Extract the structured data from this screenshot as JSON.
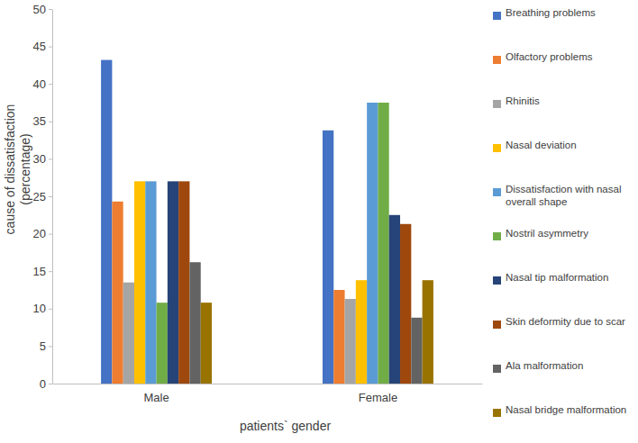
{
  "chart_data": {
    "type": "bar",
    "x_label": "patients` gender",
    "y_label": [
      "cause of dissatisfaction",
      "(percentage)"
    ],
    "categories": [
      "Male",
      "Female"
    ],
    "series": [
      {
        "name": "Breathing problems",
        "color": "#4472c4",
        "values": [
          43.2,
          33.8
        ]
      },
      {
        "name": "Olfactory problems",
        "color": "#ed7d31",
        "values": [
          24.3,
          12.5
        ]
      },
      {
        "name": "Rhinitis",
        "color": "#a5a5a5",
        "values": [
          13.5,
          11.3
        ]
      },
      {
        "name": "Nasal deviation",
        "color": "#ffc000",
        "values": [
          27.0,
          13.8
        ]
      },
      {
        "name": "Dissatisfaction with nasal overall shape",
        "color": "#5b9bd5",
        "values": [
          27.0,
          37.5
        ]
      },
      {
        "name": "Nostril asymmetry",
        "color": "#70ad47",
        "values": [
          10.8,
          37.5
        ]
      },
      {
        "name": "Nasal tip malformation",
        "color": "#264478",
        "values": [
          27.0,
          22.5
        ]
      },
      {
        "name": "Skin deformity due to scar",
        "color": "#9e480e",
        "values": [
          27.0,
          21.3
        ]
      },
      {
        "name": "Ala malformation",
        "color": "#636363",
        "values": [
          16.2,
          8.8
        ]
      },
      {
        "name": "Nasal bridge malformation",
        "color": "#997300",
        "values": [
          10.8,
          13.8
        ]
      }
    ],
    "ylim": [
      0,
      50
    ],
    "yticks": [
      0,
      5,
      10,
      15,
      20,
      25,
      30,
      35,
      40,
      45,
      50
    ],
    "grid": false,
    "legend": "right"
  }
}
